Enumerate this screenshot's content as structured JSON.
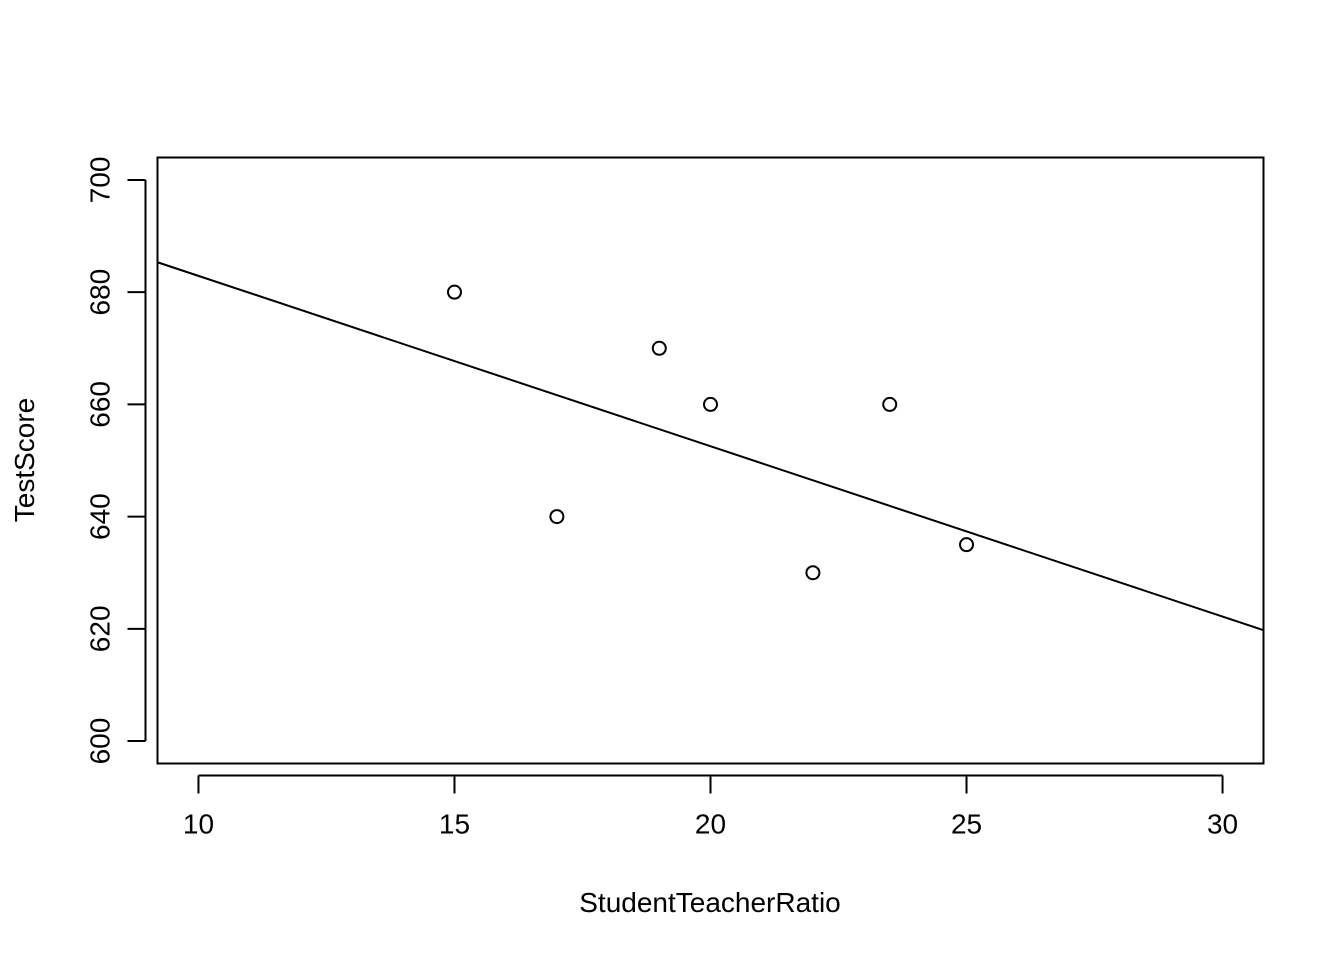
{
  "chart_data": {
    "type": "scatter",
    "title": "",
    "xlabel": "StudentTeacherRatio",
    "ylabel": "TestScore",
    "xlim": [
      9.2,
      30.8
    ],
    "ylim": [
      596,
      704
    ],
    "x_ticks": [
      10,
      15,
      20,
      25,
      30
    ],
    "y_ticks": [
      600,
      620,
      640,
      660,
      680,
      700
    ],
    "grid": false,
    "legend": "none",
    "point_style": "open-circle",
    "colors": {
      "points": "#000000",
      "line": "#000000",
      "frame": "#000000",
      "background": "#ffffff"
    },
    "series": [
      {
        "x": [
          15,
          17,
          19,
          20,
          22,
          23.5,
          25
        ],
        "y": [
          680,
          640,
          670,
          660,
          630,
          660,
          635
        ]
      }
    ],
    "regression_line": {
      "intercept": 713.26,
      "slope": -3.0359
    }
  }
}
